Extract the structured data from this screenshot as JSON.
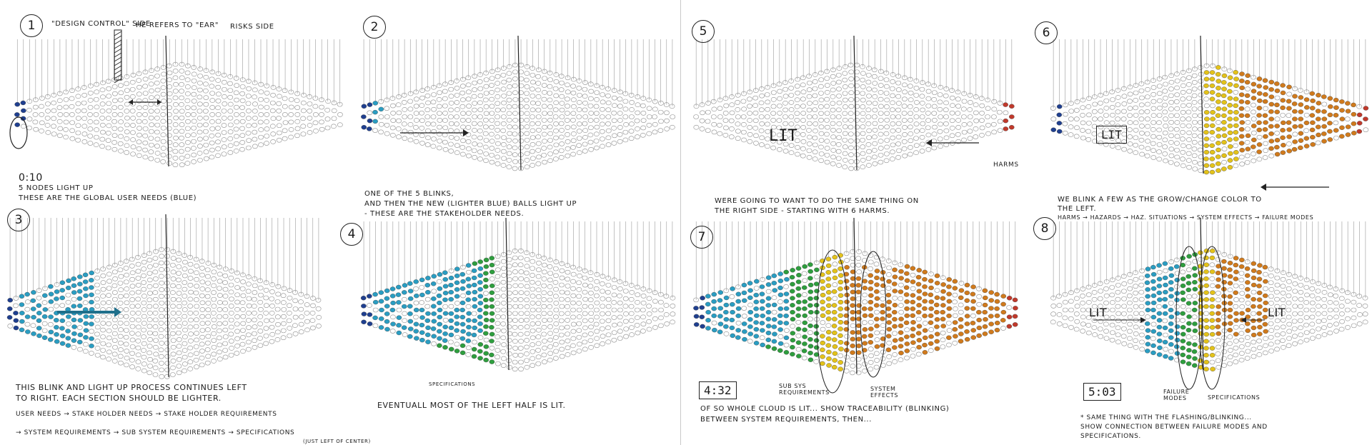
{
  "colors": {
    "ink": "#333333",
    "user_blue": "#1f3f8f",
    "light_blue": "#2a9dc2",
    "green": "#2e9e3e",
    "yellow": "#e3c21a",
    "orange": "#d07a1c",
    "red": "#c0392b"
  },
  "panels": [
    {
      "number": "1",
      "labels": [
        "\"DESIGN CONTROL\" SIDE",
        "HE REFERS TO \"EAR\"",
        "RISKS SIDE"
      ],
      "time": "0:10",
      "caption": [
        "5 NODES LIGHT UP",
        "THESE ARE THE GLOBAL USER NEEDS (BLUE)"
      ]
    },
    {
      "number": "2",
      "caption": [
        "ONE OF THE 5 BLINKS,",
        "AND THEN THE NEW (LIGHTER BLUE) BALLS LIGHT UP",
        "- THESE ARE THE STAKEHOLDER NEEDS."
      ]
    },
    {
      "number": "3",
      "caption": [
        "THIS BLINK AND LIGHT UP PROCESS CONTINUES LEFT",
        "TO RIGHT. EACH SECTION SHOULD BE LIGHTER."
      ],
      "flow1": "USER NEEDS → STAKE HOLDER NEEDS → STAKE HOLDER REQUIREMENTS",
      "flow2": "→ SYSTEM REQUIREMENTS → SUB SYSTEM REQUIREMENTS → SPECIFICATIONS",
      "flow_note": "(JUST LEFT OF CENTER)"
    },
    {
      "number": "4",
      "label": "SPECIFICATIONS",
      "caption": [
        "EVENTUALL MOST OF THE LEFT HALF IS LIT."
      ]
    },
    {
      "number": "5",
      "box_label": "LIT",
      "harms_label": "HARMS",
      "caption": [
        "WERE GOING TO WANT TO DO THE SAME THING ON",
        "THE RIGHT SIDE - STARTING WITH 6 HARMS."
      ]
    },
    {
      "number": "6",
      "box_label": "LIT",
      "caption": [
        "WE BLINK A FEW AS THE GROW/CHANGE COLOR TO",
        "THE LEFT."
      ],
      "flow": "HARMS → HAZARDS → HAZ. SITUATIONS → SYSTEM EFFECTS → FAILURE MODES"
    },
    {
      "number": "7",
      "time": "4:32",
      "label_left": "SUB SYS REQUIREMENTS",
      "label_right": "SYSTEM EFFECTS",
      "caption": [
        "OF SO WHOLE CLOUD IS LIT... SHOW TRACEABILITY (BLINKING)",
        "BETWEEN SYSTEM REQUIREMENTS, THEN..."
      ]
    },
    {
      "number": "8",
      "time": "5:03",
      "lit_left": "LIT",
      "lit_right": "LIT",
      "label_left": "FAILURE MODES",
      "label_right": "SPECIFICATIONS",
      "caption": [
        "* SAME THING WITH THE FLASHING/BLINKING...",
        "SHOW CONNECTION BETWEEN FAILURE MODES AND",
        "SPECIFICATIONS."
      ]
    }
  ]
}
